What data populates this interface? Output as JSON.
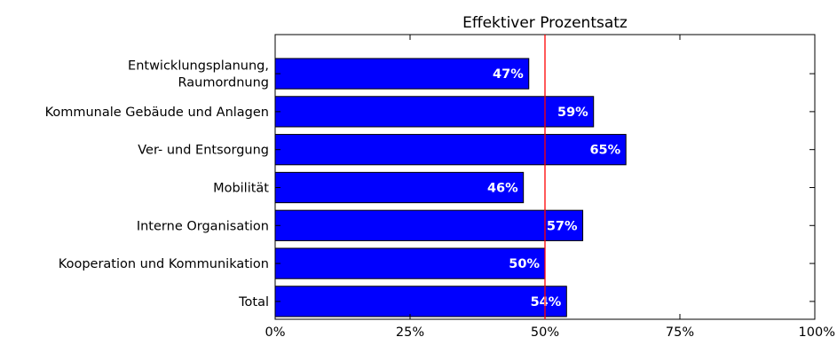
{
  "chart_data": {
    "type": "bar",
    "orientation": "horizontal",
    "title": "Effektiver Prozentsatz",
    "xlabel": "",
    "ylabel": "",
    "categories": [
      [
        "Entwicklungsplanung,",
        "Raumordnung"
      ],
      [
        "Kommunale Gebäude und Anlagen"
      ],
      [
        "Ver- und Entsorgung"
      ],
      [
        "Mobilität"
      ],
      [
        "Interne Organisation"
      ],
      [
        "Kooperation und Kommunikation"
      ],
      [
        "Total"
      ]
    ],
    "values": [
      47,
      59,
      65,
      46,
      57,
      50,
      54
    ],
    "data_labels": [
      "47%",
      "59%",
      "65%",
      "46%",
      "57%",
      "50%",
      "54%"
    ],
    "xlim": [
      0,
      100
    ],
    "xticks": [
      0,
      25,
      50,
      75,
      100
    ],
    "xtick_labels": [
      "0%",
      "25%",
      "50%",
      "75%",
      "100%"
    ],
    "reference_line": {
      "x": 50,
      "color": "#ff0000"
    },
    "grid": false,
    "legend": "none",
    "colors": {
      "bar_fill": "#0000ff",
      "bar_edge": "#000000",
      "data_label": "#ffffff",
      "axis": "#000000"
    }
  }
}
